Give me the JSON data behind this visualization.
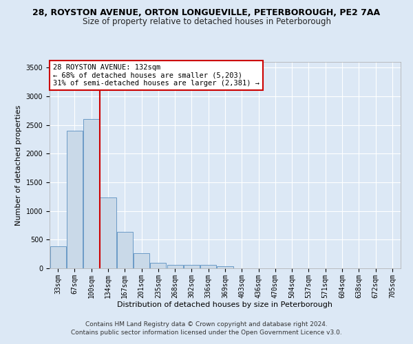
{
  "title": "28, ROYSTON AVENUE, ORTON LONGUEVILLE, PETERBOROUGH, PE2 7AA",
  "subtitle": "Size of property relative to detached houses in Peterborough",
  "xlabel": "Distribution of detached houses by size in Peterborough",
  "ylabel": "Number of detached properties",
  "categories": [
    "33sqm",
    "67sqm",
    "100sqm",
    "134sqm",
    "167sqm",
    "201sqm",
    "235sqm",
    "268sqm",
    "302sqm",
    "336sqm",
    "369sqm",
    "403sqm",
    "436sqm",
    "470sqm",
    "504sqm",
    "537sqm",
    "571sqm",
    "604sqm",
    "638sqm",
    "672sqm",
    "705sqm"
  ],
  "values": [
    390,
    2400,
    2600,
    1240,
    640,
    260,
    100,
    65,
    60,
    55,
    40,
    0,
    0,
    0,
    0,
    0,
    0,
    0,
    0,
    0,
    0
  ],
  "bar_color": "#c9d9e8",
  "bar_edge_color": "#5a8fc0",
  "vline_color": "#cc0000",
  "vline_x_index": 2.5,
  "annotation_text": "28 ROYSTON AVENUE: 132sqm\n← 68% of detached houses are smaller (5,203)\n31% of semi-detached houses are larger (2,381) →",
  "annotation_box_color": "#ffffff",
  "annotation_box_edge_color": "#cc0000",
  "ylim": [
    0,
    3600
  ],
  "yticks": [
    0,
    500,
    1000,
    1500,
    2000,
    2500,
    3000,
    3500
  ],
  "background_color": "#dce8f5",
  "plot_background": "#dce8f5",
  "grid_color": "#ffffff",
  "footer_text": "Contains HM Land Registry data © Crown copyright and database right 2024.\nContains public sector information licensed under the Open Government Licence v3.0.",
  "title_fontsize": 9,
  "subtitle_fontsize": 8.5,
  "xlabel_fontsize": 8,
  "ylabel_fontsize": 8,
  "tick_fontsize": 7,
  "annotation_fontsize": 7.5,
  "footer_fontsize": 6.5
}
